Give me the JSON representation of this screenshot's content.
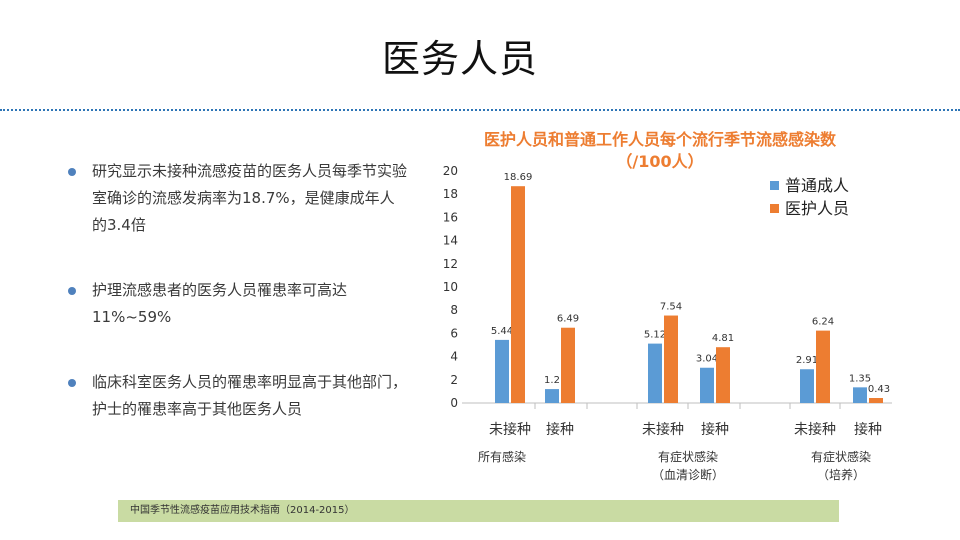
{
  "slide": {
    "title": "医务人员",
    "bullets": [
      "研究显示未接种流感疫苗的医务人员每季节实验室确诊的流感发病率为18.7%，是健康成年人的3.4倍",
      "护理流感患者的医务人员罹患率可高达11%~59%",
      "临床科室医务人员的罹患率明显高于其他部门，护士的罹患率高于其他医务人员"
    ],
    "source": "中国季节性流感疫苗应用技术指南（2014-2015）",
    "colors": {
      "divider": "#2e75b6",
      "source_bg": "#c9dba3",
      "bullet": "#4f81bd"
    }
  },
  "chart_data": {
    "type": "bar",
    "title_line1": "医护人员和普通工作人员每个流行季节流感感染数",
    "title_line2": "（/100人）",
    "categories": [
      "未接种",
      "接种",
      "未接种",
      "接种",
      "未接种",
      "接种"
    ],
    "groups": [
      {
        "label_line1": "所有感染",
        "label_line2": ""
      },
      {
        "label_line1": "有症状感染",
        "label_line2": "（血清诊断）"
      },
      {
        "label_line1": "有症状感染",
        "label_line2": "（培养）"
      }
    ],
    "series": [
      {
        "name": "普通成人",
        "color": "#5b9bd5",
        "values": [
          5.44,
          1.2,
          5.12,
          3.04,
          2.91,
          1.35
        ]
      },
      {
        "name": "医护人员",
        "color": "#ed7d31",
        "values": [
          18.69,
          6.49,
          7.54,
          4.81,
          6.24,
          0.43
        ]
      }
    ],
    "value_labels": [
      [
        "5.44",
        "1.2",
        "5.12",
        "3.04",
        "2.91",
        "1.35"
      ],
      [
        "18.69",
        "6.49",
        "7.54",
        "4.81",
        "6.24",
        "0.43"
      ]
    ],
    "ylim": [
      0,
      20
    ],
    "yticks": [
      0,
      2,
      4,
      6,
      8,
      10,
      12,
      14,
      16,
      18,
      20
    ],
    "grid": false,
    "legend_position": "top-right"
  }
}
